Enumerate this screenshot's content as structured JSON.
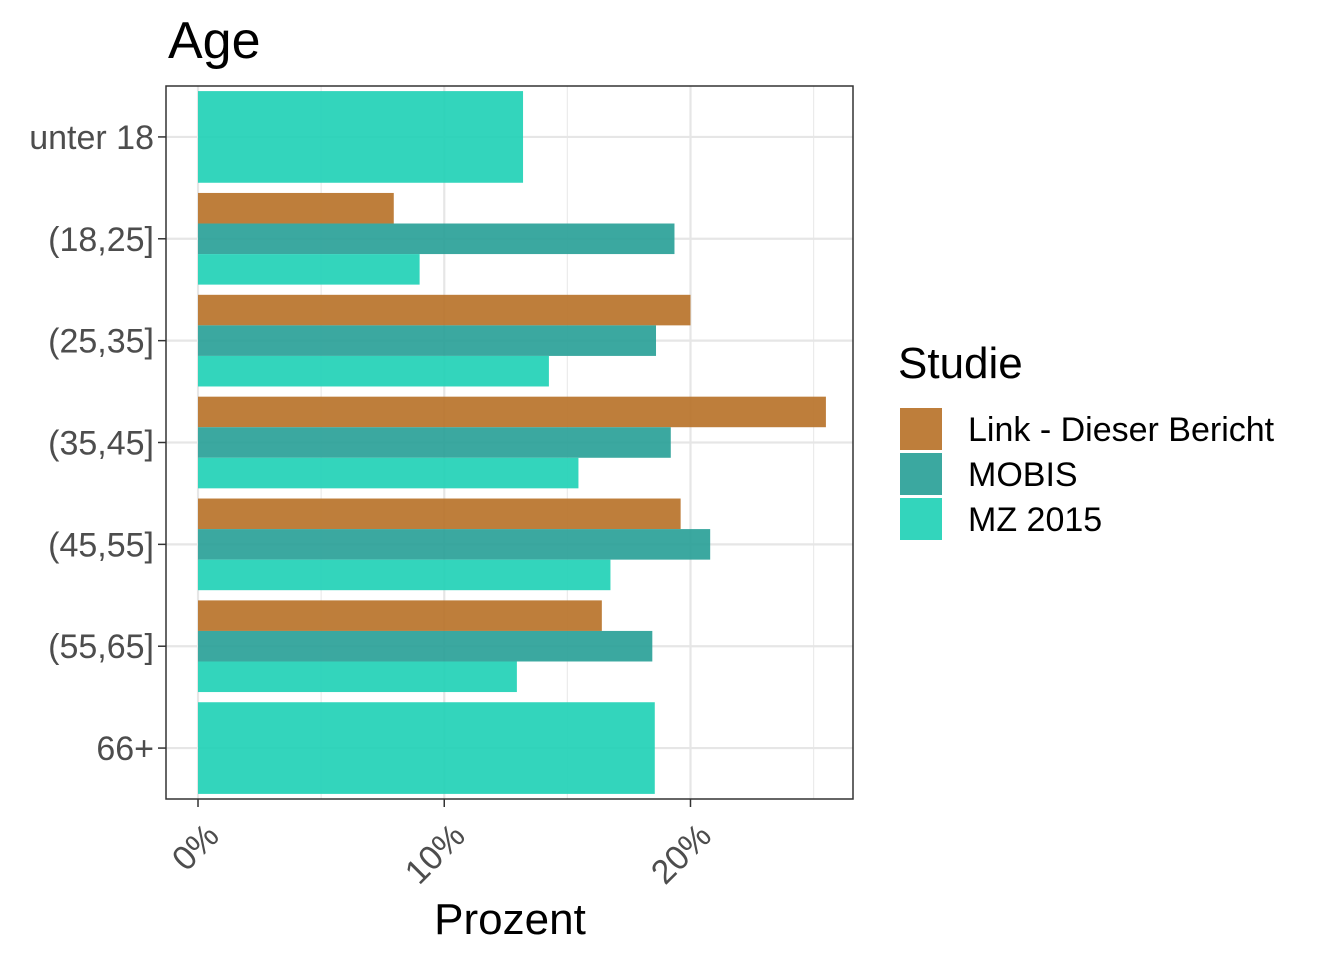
{
  "chart_data": {
    "type": "bar",
    "orientation": "horizontal",
    "title": "Age",
    "xlabel": "Prozent",
    "ylabel": "",
    "categories": [
      "unter 18",
      "(18,25]",
      "(25,35]",
      "(35,45]",
      "(45,55]",
      "(55,65]",
      "66+"
    ],
    "x_ticks": [
      "0%",
      "10%",
      "20%"
    ],
    "xlim": [
      -1.3,
      26.6
    ],
    "grid": true,
    "legend": {
      "title": "Studie",
      "position": "right"
    },
    "series": [
      {
        "name": "Link - Dieser Bericht",
        "color": "#b8732a",
        "values": [
          null,
          7.95,
          20.0,
          25.5,
          19.6,
          16.4,
          null
        ]
      },
      {
        "name": "MOBIS",
        "color": "#2aa198",
        "values": [
          null,
          19.35,
          18.6,
          19.2,
          20.8,
          18.45,
          null
        ]
      },
      {
        "name": "MZ 2015",
        "color": "#22d1b6",
        "values": [
          13.2,
          9.0,
          14.25,
          15.45,
          16.75,
          12.95,
          18.55
        ]
      }
    ]
  }
}
